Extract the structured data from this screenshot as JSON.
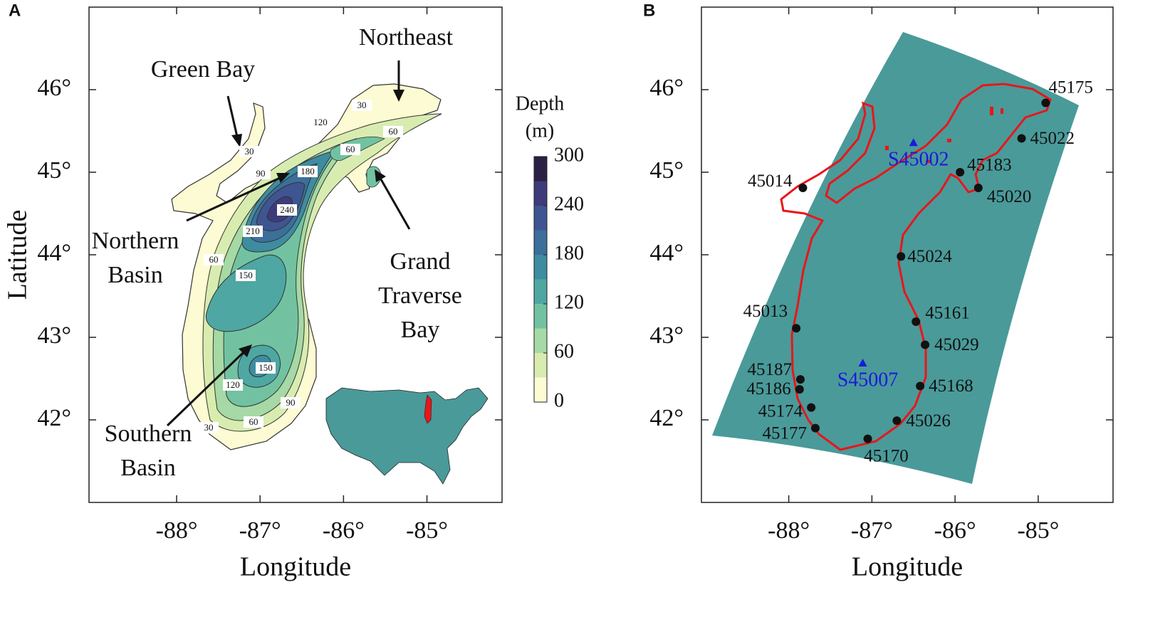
{
  "panel_a": {
    "label": "A",
    "xlabel": "Longitude",
    "ylabel": "Latitude",
    "xlim": [
      -89.05,
      -84.1
    ],
    "ylim": [
      41.0,
      47.0
    ],
    "xticks": [
      {
        "value": -88,
        "label": "-88°"
      },
      {
        "value": -87,
        "label": "-87°"
      },
      {
        "value": -86,
        "label": "-86°"
      },
      {
        "value": -85,
        "label": "-85°"
      }
    ],
    "yticks": [
      {
        "value": 42,
        "label": "42°"
      },
      {
        "value": 43,
        "label": "43°"
      },
      {
        "value": 44,
        "label": "44°"
      },
      {
        "value": 45,
        "label": "45°"
      },
      {
        "value": 46,
        "label": "46°"
      }
    ],
    "annotations": [
      {
        "lines": [
          "Green Bay"
        ]
      },
      {
        "lines": [
          "Northeast"
        ]
      },
      {
        "lines": [
          "Northern",
          "Basin"
        ]
      },
      {
        "lines": [
          "Grand",
          "Traverse",
          "Bay"
        ]
      },
      {
        "lines": [
          "Southern",
          "Basin"
        ]
      }
    ],
    "contour_labels": [
      30,
      120,
      30,
      60,
      180,
      60,
      90,
      240,
      210,
      60,
      150,
      150,
      120,
      90,
      60,
      30
    ],
    "colorbar": {
      "title": [
        "Depth",
        "(m)"
      ],
      "clim": [
        0,
        300
      ],
      "ticks": [
        0,
        60,
        120,
        180,
        240,
        300
      ],
      "colors": [
        "#fdfbd3",
        "#d9ecb0",
        "#a6d9a5",
        "#72c2a2",
        "#4ea7a2",
        "#3e8ca0",
        "#3c6f9a",
        "#3f5592",
        "#3d3b7a",
        "#2c1f45"
      ]
    }
  },
  "panel_b": {
    "label": "B",
    "xlabel": "Longitude",
    "xlim": [
      -89.05,
      -84.1
    ],
    "ylim": [
      41.0,
      47.0
    ],
    "xticks": [
      {
        "value": -88,
        "label": "-88°"
      },
      {
        "value": -87,
        "label": "-87°"
      },
      {
        "value": -86,
        "label": "-86°"
      },
      {
        "value": -85,
        "label": "-85°"
      }
    ],
    "yticks": [
      {
        "value": 42,
        "label": "42°"
      },
      {
        "value": 43,
        "label": "43°"
      },
      {
        "value": 44,
        "label": "44°"
      },
      {
        "value": 45,
        "label": "45°"
      },
      {
        "value": 46,
        "label": "46°"
      }
    ],
    "stations": [
      {
        "name": "45175",
        "lon": -84.91,
        "lat": 45.84
      },
      {
        "name": "45022",
        "lon": -85.2,
        "lat": 45.41
      },
      {
        "name": "45183",
        "lon": -85.94,
        "lat": 45.0
      },
      {
        "name": "45020",
        "lon": -85.72,
        "lat": 44.81
      },
      {
        "name": "45014",
        "lon": -87.83,
        "lat": 44.81
      },
      {
        "name": "45024",
        "lon": -86.65,
        "lat": 43.98
      },
      {
        "name": "45013",
        "lon": -87.91,
        "lat": 43.11
      },
      {
        "name": "45161",
        "lon": -86.47,
        "lat": 43.19
      },
      {
        "name": "45029",
        "lon": -86.36,
        "lat": 42.91
      },
      {
        "name": "45187",
        "lon": -87.86,
        "lat": 42.49
      },
      {
        "name": "45186",
        "lon": -87.87,
        "lat": 42.37
      },
      {
        "name": "45168",
        "lon": -86.42,
        "lat": 42.41
      },
      {
        "name": "45174",
        "lon": -87.73,
        "lat": 42.15
      },
      {
        "name": "45177",
        "lon": -87.68,
        "lat": 41.9
      },
      {
        "name": "45026",
        "lon": -86.7,
        "lat": 41.99
      },
      {
        "name": "45170",
        "lon": -87.05,
        "lat": 41.77
      }
    ],
    "sites": [
      {
        "name": "S45002",
        "lon": -86.5,
        "lat": 45.36,
        "color": "#1a1adc"
      },
      {
        "name": "S45007",
        "lon": -87.11,
        "lat": 42.69,
        "color": "#1a1adc"
      }
    ]
  }
}
